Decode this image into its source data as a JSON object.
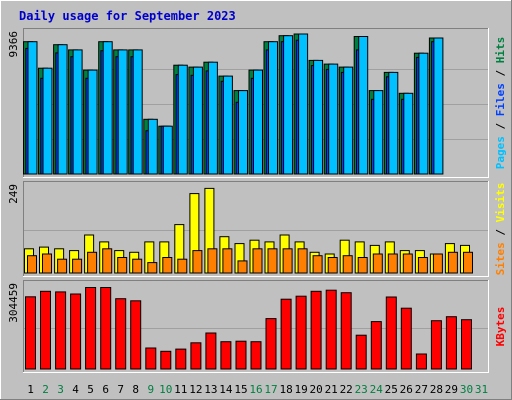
{
  "chart_data": {
    "type": "bar",
    "title": "Daily usage for September 2023",
    "categories": [
      "1",
      "2",
      "3",
      "4",
      "5",
      "6",
      "7",
      "8",
      "9",
      "10",
      "11",
      "12",
      "13",
      "14",
      "15",
      "16",
      "17",
      "18",
      "19",
      "20",
      "21",
      "22",
      "23",
      "24",
      "25",
      "26",
      "27",
      "28",
      "29",
      "30",
      "31"
    ],
    "weekend_days": [
      "2",
      "3",
      "9",
      "10",
      "16",
      "17",
      "23",
      "24",
      "30",
      "31"
    ],
    "colors": {
      "background": "#c0c0c0",
      "frame": "#a9a9a9",
      "hits": "#008040",
      "files": "#0040ff",
      "pages": "#00c0ff",
      "visits": "#ffff00",
      "sites": "#ff8000",
      "kbytes": "#ff0000",
      "title": "#0000cc",
      "weekday_label": "#000000",
      "weekend_label": "#008040"
    },
    "panels": [
      {
        "name": "hits-files-pages",
        "ymax_label": "9366",
        "ymax": 9366,
        "side_label": [
          {
            "text": "Pages",
            "color": "#00c0ff"
          },
          {
            "text": " / ",
            "color": "#000000"
          },
          {
            "text": "Files",
            "color": "#0040ff"
          },
          {
            "text": " / ",
            "color": "#000000"
          },
          {
            "text": "Hits",
            "color": "#008040"
          }
        ],
        "series": [
          {
            "name": "Hits",
            "color": "#008040",
            "values": [
              8850,
              7080,
              8650,
              8300,
              6950,
              8850,
              8300,
              8300,
              3660,
              3200,
              7280,
              7150,
              7480,
              6550,
              5580,
              6950,
              8850,
              9250,
              9366,
              7600,
              7350,
              7150,
              9200,
              5580,
              6800,
              5400,
              8080,
              9100,
              0,
              0,
              0
            ]
          },
          {
            "name": "Files",
            "color": "#0040ff",
            "values": [
              8400,
              6400,
              8100,
              7850,
              6400,
              8250,
              7850,
              7850,
              2900,
              3200,
              6650,
              6600,
              6900,
              6200,
              4800,
              6400,
              8300,
              8850,
              8950,
              7250,
              7000,
              6800,
              8300,
              5000,
              6500,
              5000,
              7800,
              8850,
              0,
              0,
              0
            ]
          },
          {
            "name": "Pages",
            "color": "#00c0ff",
            "values": [
              8850,
              7080,
              8650,
              8300,
              6950,
              8850,
              8300,
              8300,
              3660,
              3200,
              7280,
              7150,
              7480,
              6550,
              5580,
              6950,
              8850,
              9250,
              9366,
              7600,
              7350,
              7150,
              9200,
              5580,
              6800,
              5400,
              8080,
              9100,
              0,
              0,
              0
            ]
          }
        ]
      },
      {
        "name": "visits-sites",
        "ymax_label": "249",
        "ymax": 249,
        "side_label": [
          {
            "text": "Sites",
            "color": "#ff8000"
          },
          {
            "text": " / ",
            "color": "#000000"
          },
          {
            "text": "Visits",
            "color": "#ffff00"
          }
        ],
        "series": [
          {
            "name": "Visits",
            "color": "#ffff00",
            "values": [
              70,
              75,
              70,
              65,
              110,
              90,
              65,
              60,
              90,
              90,
              140,
              230,
              245,
              105,
              85,
              95,
              90,
              110,
              90,
              60,
              55,
              95,
              90,
              80,
              90,
              65,
              65,
              55,
              85,
              80,
              0
            ]
          },
          {
            "name": "Sites",
            "color": "#ff8000",
            "values": [
              50,
              55,
              40,
              40,
              60,
              70,
              45,
              40,
              30,
              45,
              40,
              65,
              70,
              70,
              35,
              70,
              70,
              70,
              70,
              50,
              45,
              50,
              45,
              55,
              55,
              55,
              45,
              55,
              60,
              60,
              0
            ]
          }
        ]
      },
      {
        "name": "kbytes",
        "ymax_label": "304459",
        "ymax": 304459,
        "side_label": [
          {
            "text": "KBytes",
            "color": "#ff0000"
          }
        ],
        "series": [
          {
            "name": "KBytes",
            "color": "#ff0000",
            "values": [
              265000,
              285000,
              283000,
              275000,
              299000,
              299000,
              258000,
              250000,
              77000,
              65000,
              73000,
              96000,
              132000,
              100000,
              102000,
              100000,
              185000,
              256000,
              267000,
              285000,
              289000,
              280000,
              124000,
              174000,
              264000,
              223000,
              55000,
              177000,
              192000,
              181000,
              0
            ]
          }
        ]
      }
    ]
  }
}
